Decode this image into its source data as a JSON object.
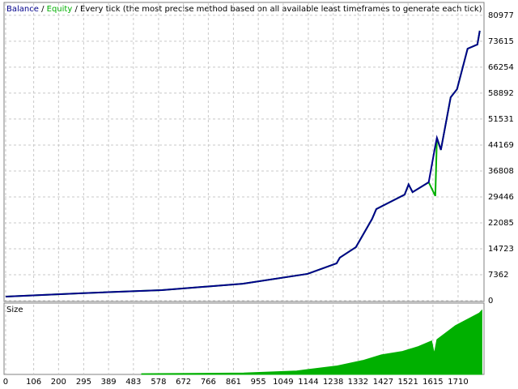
{
  "chart_data": [
    {
      "type": "line",
      "separator": "/",
      "subtitle": "Every tick (the most precise method based on all available least timeframes to generate each tick)",
      "x": [
        0,
        284,
        590,
        896,
        1141,
        1251,
        1263,
        1324,
        1385,
        1401,
        1508,
        1523,
        1538,
        1599,
        1624,
        1630,
        1645,
        1682,
        1706,
        1722,
        1746,
        1783,
        1792
      ],
      "series": [
        {
          "name": "Balance",
          "color": "#00008b",
          "values": [
            1150,
            2100,
            3000,
            4800,
            7600,
            10600,
            12200,
            15200,
            23200,
            26000,
            30100,
            33000,
            30800,
            33600,
            44000,
            46200,
            42800,
            57700,
            60000,
            64600,
            71500,
            72700,
            76600
          ]
        },
        {
          "name": "Equity",
          "color": "#00b000",
          "values": [
            1150,
            2100,
            3000,
            4800,
            7600,
            10600,
            12200,
            15200,
            23200,
            26000,
            30100,
            33000,
            30800,
            33600,
            29700,
            46200,
            42800,
            57700,
            60000,
            64600,
            71500,
            72700,
            76600
          ]
        }
      ],
      "xlim": [
        -6,
        1808
      ],
      "ylim": [
        0,
        84400
      ],
      "xticks": [
        0,
        106,
        200,
        295,
        389,
        483,
        578,
        672,
        766,
        861,
        955,
        1049,
        1144,
        1238,
        1332,
        1427,
        1521,
        1615,
        1710
      ],
      "yticks": [
        0,
        7362,
        14723,
        22085,
        29446,
        36808,
        44169,
        51531,
        58892,
        66254,
        73615,
        80977
      ],
      "grid": true
    },
    {
      "type": "area",
      "title": "Size",
      "x": [
        514,
        900,
        1100,
        1250,
        1350,
        1420,
        1500,
        1560,
        1610,
        1620,
        1630,
        1700,
        1790,
        1800
      ],
      "values": [
        1,
        2,
        5,
        12,
        20,
        28,
        33,
        40,
        48,
        30,
        50,
        70,
        88,
        92
      ],
      "color": "#00b000",
      "xlim": [
        -6,
        1808
      ],
      "ylim": [
        0,
        100
      ],
      "grid": true
    }
  ]
}
